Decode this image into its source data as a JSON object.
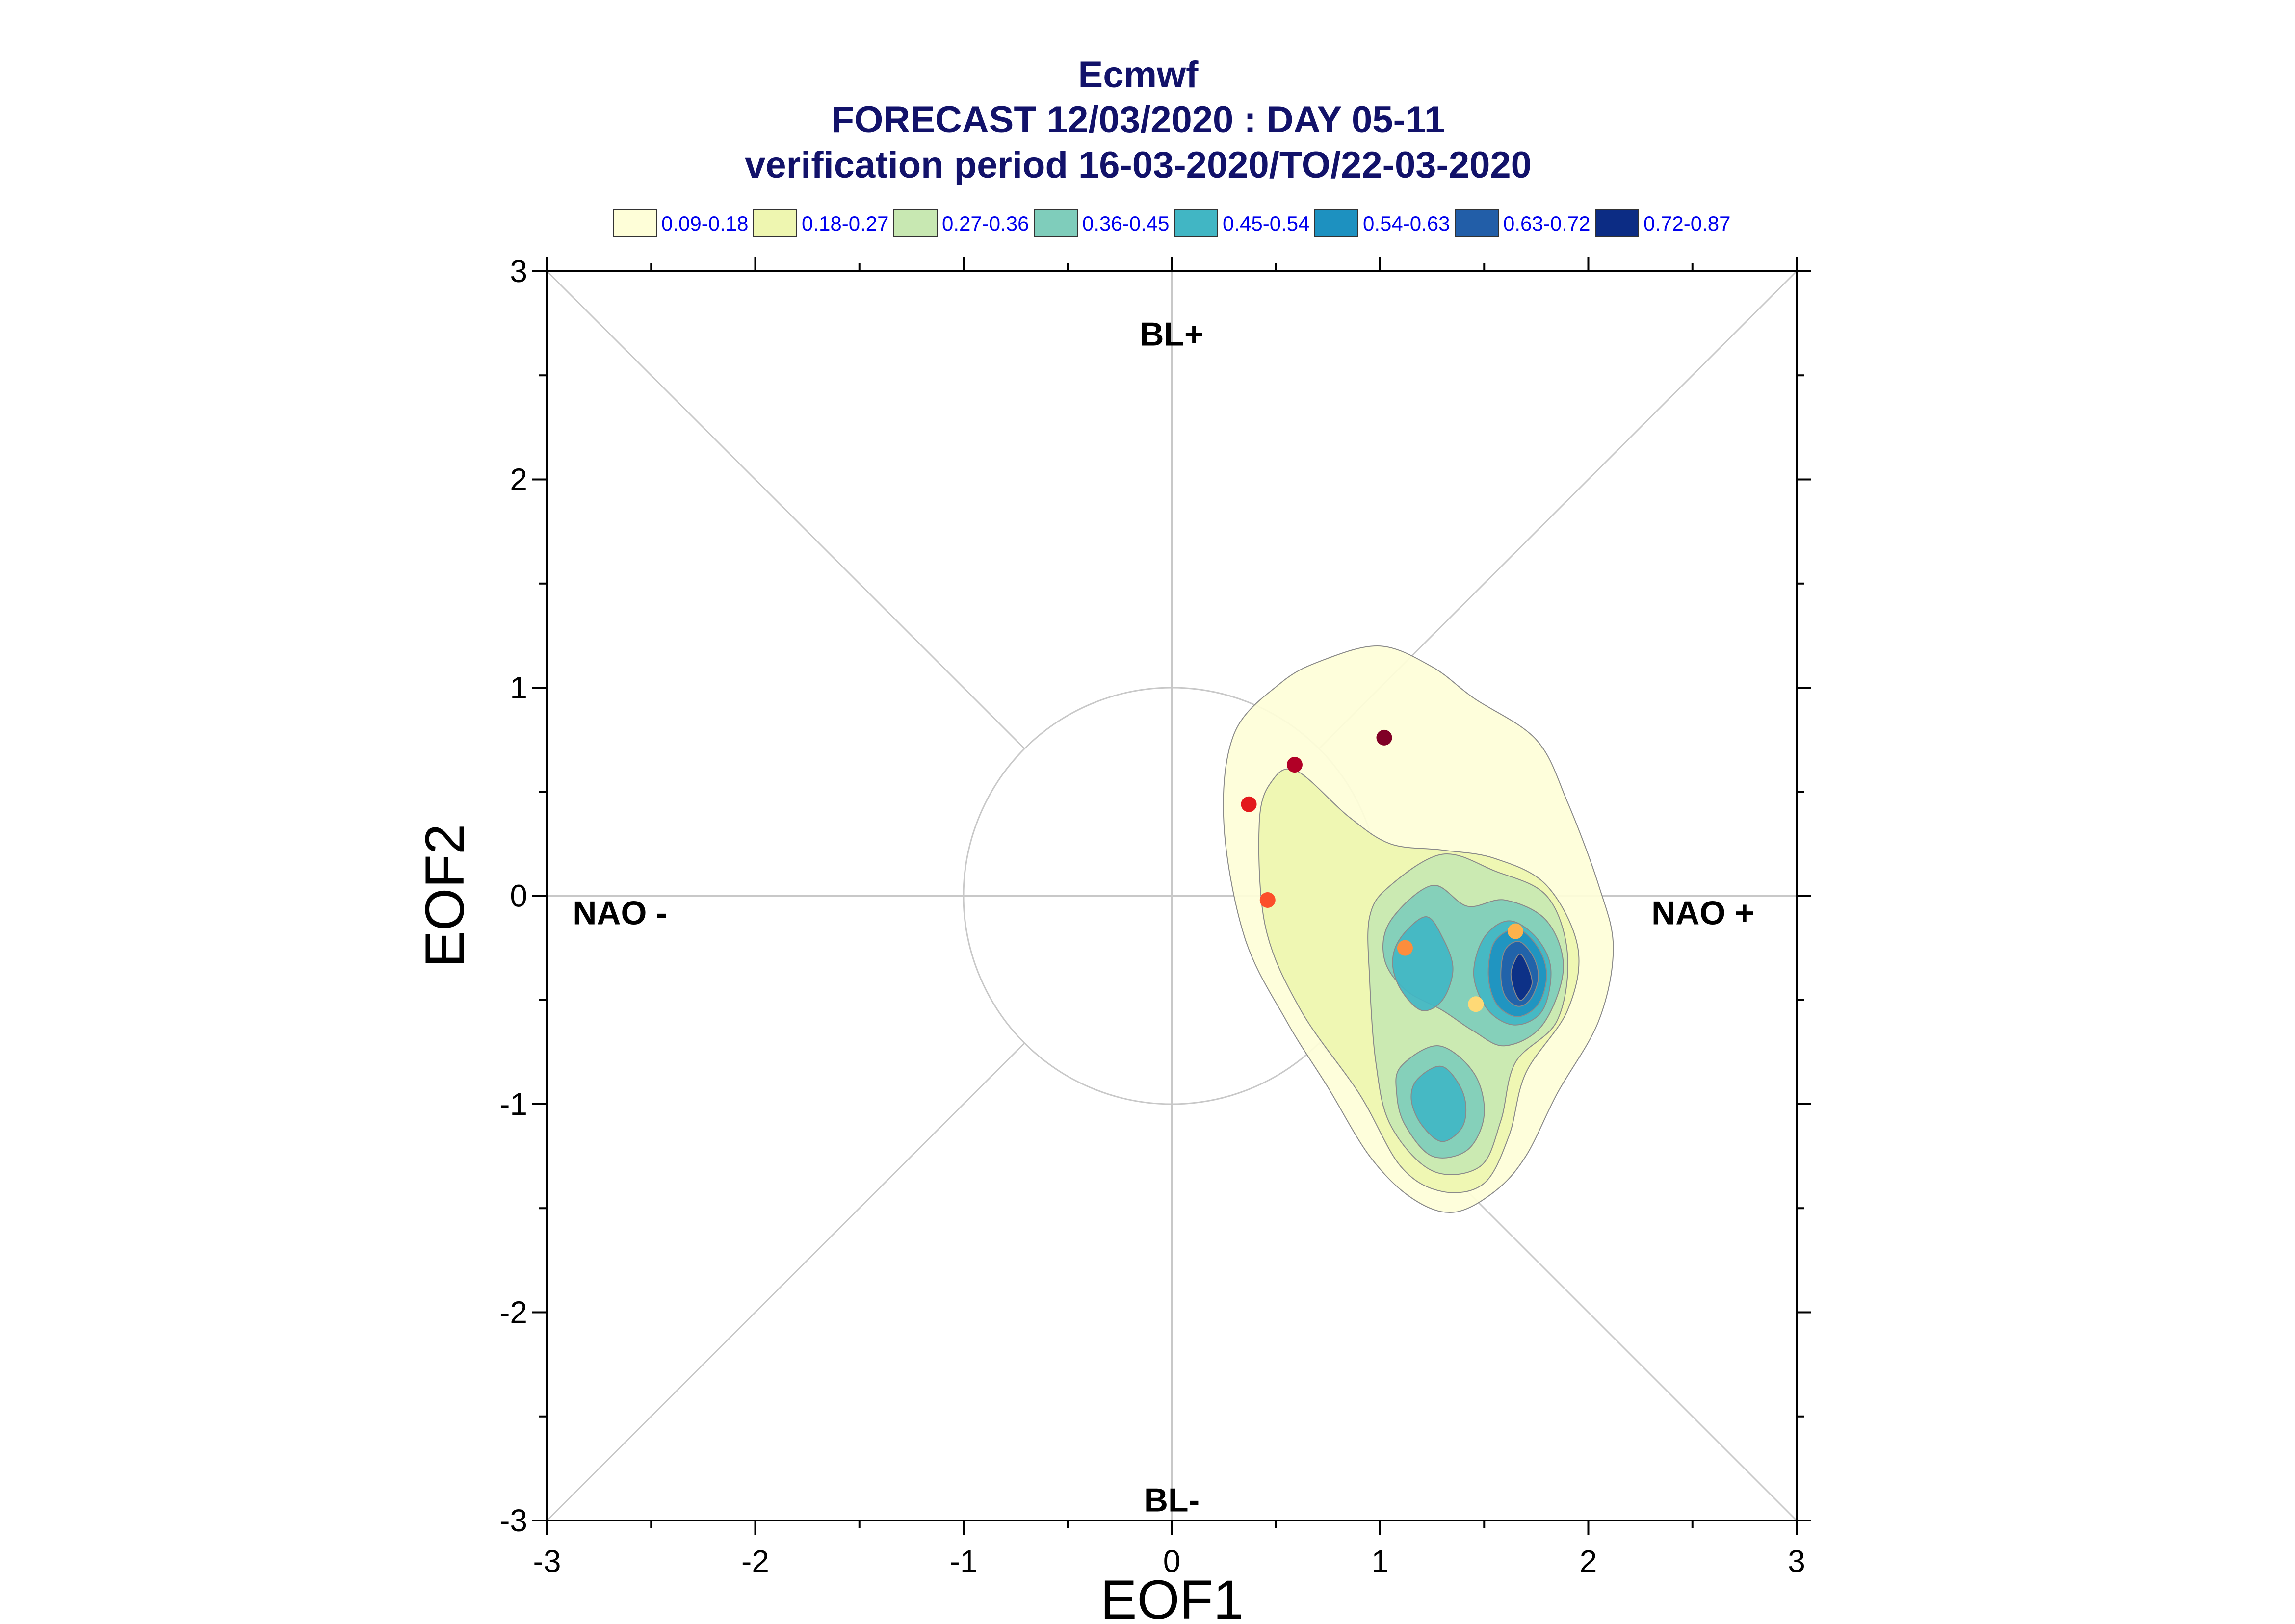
{
  "chart_data": {
    "type": "contour-scatter",
    "title": "Ecmwf",
    "subtitle": "FORECAST 12/03/2020 : DAY 05-11",
    "subtitle2": "verification period 16-03-2020/TO/22-03-2020",
    "xlabel": "EOF1",
    "ylabel": "EOF2",
    "xlim": [
      -3,
      3
    ],
    "ylim": [
      -3,
      3
    ],
    "xticks": [
      -3,
      -2,
      -1,
      0,
      1,
      2,
      3
    ],
    "yticks": [
      -3,
      -2,
      -1,
      0,
      1,
      2,
      3
    ],
    "grid": false,
    "legend_position": "top",
    "legend": [
      {
        "label": "0.09-0.18",
        "color": "#fefed8"
      },
      {
        "label": "0.18-0.27",
        "color": "#eef6b0"
      },
      {
        "label": "0.27-0.36",
        "color": "#c8e8b2"
      },
      {
        "label": "0.36-0.45",
        "color": "#7fcdbb"
      },
      {
        "label": "0.45-0.54",
        "color": "#41b6c4"
      },
      {
        "label": "0.54-0.63",
        "color": "#1d91c0"
      },
      {
        "label": "0.63-0.72",
        "color": "#225ea8"
      },
      {
        "label": "0.72-0.87",
        "color": "#0c2c84"
      }
    ],
    "regime_labels": [
      {
        "text": "BL+",
        "x": 0,
        "y": 2.7
      },
      {
        "text": "BL-",
        "x": 0,
        "y": -2.9
      },
      {
        "text": "NAO -",
        "x": -2.65,
        "y": -0.08
      },
      {
        "text": "NAO +",
        "x": 2.55,
        "y": -0.08
      }
    ],
    "unit_circle_radius": 1,
    "contours": [
      {
        "level": "0.09-0.18",
        "points": [
          [
            0.52,
            1.02
          ],
          [
            0.72,
            1.13
          ],
          [
            1.0,
            1.2
          ],
          [
            1.25,
            1.1
          ],
          [
            1.45,
            0.95
          ],
          [
            1.75,
            0.75
          ],
          [
            1.9,
            0.45
          ],
          [
            2.05,
            0.05
          ],
          [
            2.12,
            -0.25
          ],
          [
            2.05,
            -0.6
          ],
          [
            1.85,
            -0.95
          ],
          [
            1.7,
            -1.25
          ],
          [
            1.55,
            -1.42
          ],
          [
            1.35,
            -1.52
          ],
          [
            1.15,
            -1.45
          ],
          [
            0.95,
            -1.25
          ],
          [
            0.75,
            -0.92
          ],
          [
            0.55,
            -0.6
          ],
          [
            0.35,
            -0.2
          ],
          [
            0.25,
            0.35
          ],
          [
            0.3,
            0.78
          ]
        ]
      },
      {
        "level": "0.18-0.27",
        "points": [
          [
            0.6,
            0.6
          ],
          [
            0.85,
            0.38
          ],
          [
            1.05,
            0.25
          ],
          [
            1.3,
            0.22
          ],
          [
            1.55,
            0.18
          ],
          [
            1.8,
            0.05
          ],
          [
            1.95,
            -0.25
          ],
          [
            1.9,
            -0.55
          ],
          [
            1.7,
            -0.85
          ],
          [
            1.62,
            -1.15
          ],
          [
            1.5,
            -1.38
          ],
          [
            1.3,
            -1.42
          ],
          [
            1.1,
            -1.3
          ],
          [
            0.9,
            -0.95
          ],
          [
            0.62,
            -0.55
          ],
          [
            0.45,
            -0.15
          ],
          [
            0.42,
            0.35
          ],
          [
            0.48,
            0.55
          ]
        ]
      },
      {
        "level": "0.27-0.36",
        "points": [
          [
            1.05,
            0.05
          ],
          [
            1.3,
            0.2
          ],
          [
            1.55,
            0.12
          ],
          [
            1.8,
            0.0
          ],
          [
            1.9,
            -0.28
          ],
          [
            1.85,
            -0.6
          ],
          [
            1.65,
            -0.8
          ],
          [
            1.58,
            -1.08
          ],
          [
            1.48,
            -1.3
          ],
          [
            1.25,
            -1.32
          ],
          [
            1.05,
            -1.1
          ],
          [
            0.98,
            -0.8
          ],
          [
            0.95,
            -0.4
          ],
          [
            0.95,
            -0.1
          ]
        ]
      },
      {
        "level": "0.36-0.45",
        "points": [
          [
            1.05,
            -0.12
          ],
          [
            1.25,
            0.05
          ],
          [
            1.42,
            -0.05
          ],
          [
            1.6,
            -0.02
          ],
          [
            1.8,
            -0.12
          ],
          [
            1.88,
            -0.35
          ],
          [
            1.78,
            -0.62
          ],
          [
            1.6,
            -0.72
          ],
          [
            1.45,
            -0.65
          ],
          [
            1.3,
            -0.55
          ],
          [
            1.12,
            -0.45
          ],
          [
            1.02,
            -0.3
          ]
        ]
      },
      {
        "level": "0.36-0.45",
        "points": [
          [
            1.1,
            -0.82
          ],
          [
            1.28,
            -0.72
          ],
          [
            1.45,
            -0.85
          ],
          [
            1.5,
            -1.05
          ],
          [
            1.42,
            -1.22
          ],
          [
            1.25,
            -1.25
          ],
          [
            1.12,
            -1.1
          ],
          [
            1.08,
            -0.95
          ]
        ]
      },
      {
        "level": "0.45-0.54",
        "points": [
          [
            1.1,
            -0.2
          ],
          [
            1.22,
            -0.1
          ],
          [
            1.3,
            -0.2
          ],
          [
            1.35,
            -0.35
          ],
          [
            1.3,
            -0.5
          ],
          [
            1.2,
            -0.55
          ],
          [
            1.1,
            -0.45
          ],
          [
            1.06,
            -0.32
          ]
        ]
      },
      {
        "level": "0.45-0.54",
        "points": [
          [
            1.5,
            -0.2
          ],
          [
            1.62,
            -0.12
          ],
          [
            1.75,
            -0.2
          ],
          [
            1.82,
            -0.35
          ],
          [
            1.78,
            -0.55
          ],
          [
            1.65,
            -0.62
          ],
          [
            1.52,
            -0.55
          ],
          [
            1.45,
            -0.38
          ]
        ]
      },
      {
        "level": "0.45-0.54",
        "points": [
          [
            1.18,
            -0.88
          ],
          [
            1.3,
            -0.82
          ],
          [
            1.4,
            -0.95
          ],
          [
            1.4,
            -1.1
          ],
          [
            1.3,
            -1.18
          ],
          [
            1.2,
            -1.1
          ],
          [
            1.15,
            -0.98
          ]
        ]
      },
      {
        "level": "0.54-0.63",
        "points": [
          [
            1.55,
            -0.22
          ],
          [
            1.66,
            -0.16
          ],
          [
            1.76,
            -0.25
          ],
          [
            1.8,
            -0.38
          ],
          [
            1.76,
            -0.52
          ],
          [
            1.66,
            -0.58
          ],
          [
            1.56,
            -0.52
          ],
          [
            1.52,
            -0.38
          ]
        ]
      },
      {
        "level": "0.63-0.72",
        "points": [
          [
            1.6,
            -0.26
          ],
          [
            1.67,
            -0.22
          ],
          [
            1.74,
            -0.3
          ],
          [
            1.76,
            -0.4
          ],
          [
            1.72,
            -0.5
          ],
          [
            1.66,
            -0.53
          ],
          [
            1.6,
            -0.48
          ],
          [
            1.58,
            -0.38
          ]
        ]
      },
      {
        "level": "0.72-0.87",
        "points": [
          [
            1.67,
            -0.28
          ],
          [
            1.71,
            -0.34
          ],
          [
            1.73,
            -0.42
          ],
          [
            1.7,
            -0.48
          ],
          [
            1.67,
            -0.5
          ],
          [
            1.64,
            -0.44
          ],
          [
            1.63,
            -0.36
          ]
        ]
      }
    ],
    "points": [
      {
        "x": 1.02,
        "y": 0.76,
        "color": "#800026"
      },
      {
        "x": 0.59,
        "y": 0.63,
        "color": "#b10026"
      },
      {
        "x": 0.37,
        "y": 0.44,
        "color": "#e31a1c"
      },
      {
        "x": 0.46,
        "y": -0.02,
        "color": "#fc4e2a"
      },
      {
        "x": 1.12,
        "y": -0.25,
        "color": "#fd8d3c"
      },
      {
        "x": 1.65,
        "y": -0.17,
        "color": "#feb24c"
      },
      {
        "x": 1.46,
        "y": -0.52,
        "color": "#fed976"
      }
    ]
  }
}
